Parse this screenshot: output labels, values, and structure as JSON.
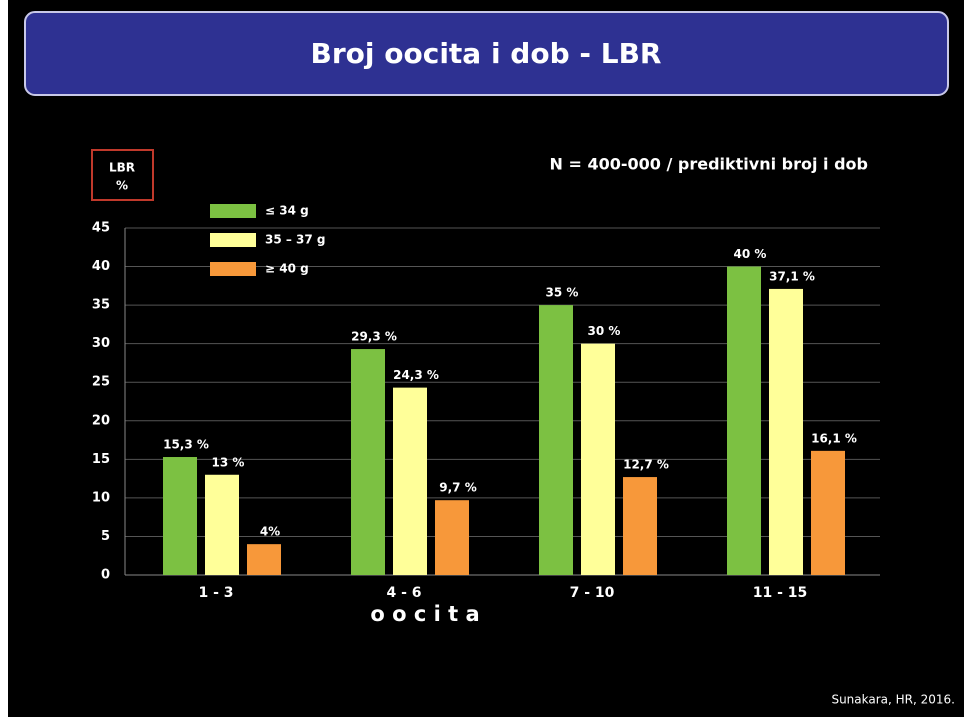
{
  "chart_data": {
    "type": "bar",
    "title": "Broj oocita i dob - LBR",
    "subtitle": "N = 400-000 / prediktivni broj i dob",
    "ylabel": [
      "LBR",
      "%"
    ],
    "xlabel": "o o c i t a",
    "source": "Sunakara, HR, 2016.",
    "categories": [
      "1 - 3",
      "4 - 6",
      "7 - 10",
      "11 - 15"
    ],
    "series": [
      {
        "name": "≤ 34 g",
        "color": "#7cc142",
        "values": [
          15.3,
          29.3,
          35,
          40
        ],
        "value_labels": [
          "15,3 %",
          "29,3 %",
          "35 %",
          "40 %"
        ]
      },
      {
        "name": "35 – 37 g",
        "color": "#ffff99",
        "values": [
          13,
          24.3,
          30,
          37.1
        ],
        "value_labels": [
          "13 %",
          "24,3 %",
          "30 %",
          "37,1 %"
        ]
      },
      {
        "name": "≥ 40 g",
        "color": "#f7983a",
        "values": [
          4,
          9.7,
          12.7,
          16.1
        ],
        "value_labels": [
          "4%",
          "9,7 %",
          "12,7 %",
          "16,1 %"
        ]
      }
    ],
    "ylim": [
      0,
      45
    ],
    "yticks": [
      0,
      5,
      10,
      15,
      20,
      25,
      30,
      35,
      40,
      45
    ],
    "grid": true
  }
}
